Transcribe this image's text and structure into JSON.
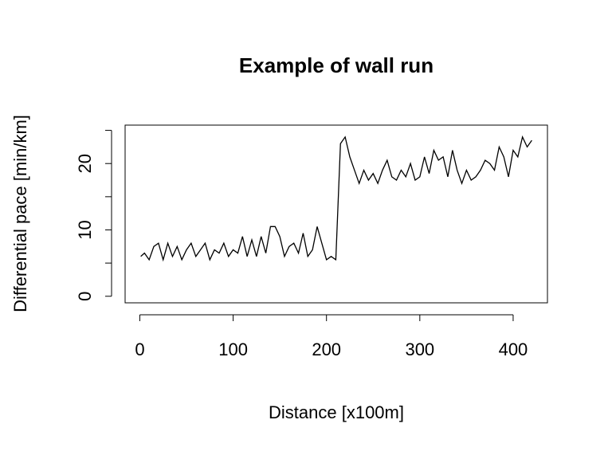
{
  "chart_data": {
    "type": "line",
    "title": "Example of wall run",
    "xlabel": "Distance [x100m]",
    "ylabel": "Differential pace [min/km]",
    "x": [
      1,
      5,
      10,
      15,
      20,
      25,
      30,
      35,
      40,
      45,
      50,
      55,
      60,
      65,
      70,
      75,
      80,
      85,
      90,
      95,
      100,
      105,
      110,
      115,
      120,
      125,
      130,
      135,
      140,
      145,
      150,
      155,
      160,
      165,
      170,
      175,
      180,
      185,
      190,
      195,
      200,
      205,
      210,
      215,
      220,
      225,
      230,
      235,
      240,
      245,
      250,
      255,
      260,
      265,
      270,
      275,
      280,
      285,
      290,
      295,
      300,
      305,
      310,
      315,
      320,
      325,
      330,
      335,
      340,
      345,
      350,
      355,
      360,
      365,
      370,
      375,
      380,
      385,
      390,
      395,
      400,
      405,
      410,
      415,
      420
    ],
    "series": [
      {
        "name": "pace",
        "color": "#000000",
        "values": [
          6,
          6.5,
          5.5,
          7.5,
          8,
          5.5,
          8,
          6,
          7.5,
          5.5,
          7,
          8,
          6,
          7,
          8,
          5.5,
          7,
          6.5,
          8,
          6,
          7,
          6.5,
          9,
          6,
          8.5,
          6,
          9,
          6.5,
          10.5,
          10.5,
          9,
          6,
          7.5,
          8,
          6.5,
          9.5,
          6,
          7,
          10.5,
          8,
          5.5,
          6,
          5.5,
          23,
          24,
          21,
          19,
          17,
          19,
          17.5,
          18.5,
          17,
          19,
          20.5,
          18,
          17.5,
          19,
          18,
          20,
          17.5,
          18,
          21,
          18.5,
          22,
          20.5,
          21,
          18,
          22,
          19,
          17,
          19,
          17.5,
          18,
          19,
          20.5,
          20,
          19,
          22.5,
          21,
          18,
          22,
          21,
          24,
          22.5,
          23.5
        ]
      }
    ],
    "xlim": [
      -15.76,
      436.76
    ],
    "ylim": [
      -0.99,
      25.79
    ],
    "xticks": [
      0,
      100,
      200,
      300,
      400
    ],
    "yticks": [
      0,
      10,
      20
    ],
    "yminor_ticks": [
      5,
      15,
      25
    ]
  }
}
